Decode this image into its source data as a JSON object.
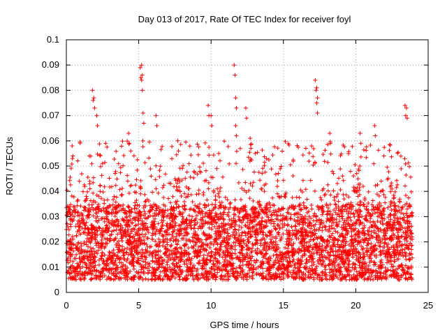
{
  "chart_data": {
    "type": "scatter",
    "title": "Day 013 of 2017, Rate Of TEC Index for receiver foyl",
    "xlabel": "GPS time / hours",
    "ylabel": "ROTI / TECUs",
    "xlim": [
      0,
      25
    ],
    "ylim": [
      0,
      0.1
    ],
    "x_ticks": [
      0,
      5,
      10,
      15,
      20,
      25
    ],
    "x_tick_labels": [
      "0",
      "5",
      "10",
      "15",
      "20",
      "25"
    ],
    "y_ticks": [
      0,
      0.01,
      0.02,
      0.03,
      0.04,
      0.05,
      0.06,
      0.07,
      0.08,
      0.09,
      0.1
    ],
    "y_tick_labels": [
      "0",
      "0.01",
      "0.02",
      "0.03",
      "0.04",
      "0.05",
      "0.06",
      "0.07",
      "0.08",
      "0.09",
      "0.1"
    ],
    "grid": true,
    "marker": "+",
    "color": "#ff0000",
    "series": [
      {
        "name": "ROTI",
        "x_range": [
          0,
          23.9
        ],
        "y_typical_range": [
          0.005,
          0.035
        ],
        "notable_points": [
          {
            "x": 0.4,
            "y": 0.058
          },
          {
            "x": 1.8,
            "y": 0.08
          },
          {
            "x": 1.9,
            "y": 0.077
          },
          {
            "x": 2.1,
            "y": 0.07
          },
          {
            "x": 4.3,
            "y": 0.063
          },
          {
            "x": 5.1,
            "y": 0.089
          },
          {
            "x": 5.2,
            "y": 0.09
          },
          {
            "x": 5.2,
            "y": 0.084
          },
          {
            "x": 5.3,
            "y": 0.071
          },
          {
            "x": 6.2,
            "y": 0.07
          },
          {
            "x": 7.7,
            "y": 0.06
          },
          {
            "x": 9.8,
            "y": 0.074
          },
          {
            "x": 10.0,
            "y": 0.07
          },
          {
            "x": 11.6,
            "y": 0.09
          },
          {
            "x": 11.7,
            "y": 0.077
          },
          {
            "x": 11.7,
            "y": 0.066
          },
          {
            "x": 12.4,
            "y": 0.073
          },
          {
            "x": 12.7,
            "y": 0.061
          },
          {
            "x": 17.2,
            "y": 0.084
          },
          {
            "x": 17.3,
            "y": 0.081
          },
          {
            "x": 17.3,
            "y": 0.075
          },
          {
            "x": 18.2,
            "y": 0.063
          },
          {
            "x": 20.3,
            "y": 0.063
          },
          {
            "x": 21.3,
            "y": 0.066
          },
          {
            "x": 23.4,
            "y": 0.074
          },
          {
            "x": 23.5,
            "y": 0.073
          }
        ]
      }
    ]
  }
}
